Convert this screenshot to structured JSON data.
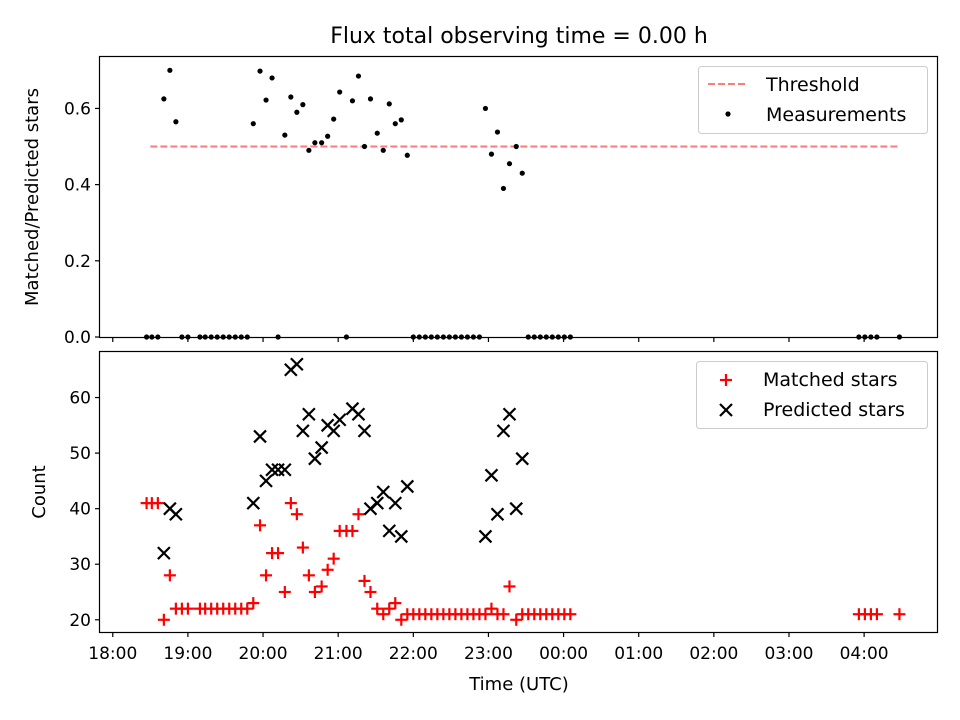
{
  "chart_data": [
    {
      "type": "scatter",
      "title": "Flux total observing time = 0.00 h",
      "ylabel": "Matched/Predicted stars",
      "xlabel": "",
      "ylim": [
        0,
        0.735
      ],
      "xlim_hours": [
        17.83,
        28.97
      ],
      "yticks": [
        0.0,
        0.2,
        0.4,
        0.6
      ],
      "ytick_labels": [
        "0.0",
        "0.2",
        "0.4",
        "0.6"
      ],
      "legend": {
        "position": "top-right",
        "threshold_label": "Threshold",
        "measurements_label": "Measurements"
      },
      "threshold": {
        "value": 0.5,
        "x_range": [
          18.5,
          28.47
        ],
        "color": "#ff7a7a"
      },
      "series": [
        {
          "name": "Measurements",
          "color": "#000000",
          "x": [
            18.45,
            18.52,
            18.6,
            18.68,
            18.76,
            18.84,
            18.92,
            19.0,
            19.16,
            19.23,
            19.31,
            19.39,
            19.47,
            19.55,
            19.63,
            19.71,
            19.79,
            19.87,
            19.96,
            20.04,
            20.12,
            20.2,
            20.29,
            20.37,
            20.45,
            20.53,
            20.61,
            20.69,
            20.78,
            20.86,
            20.94,
            21.02,
            21.11,
            21.19,
            21.27,
            21.35,
            21.43,
            21.52,
            21.6,
            21.68,
            21.76,
            21.84,
            21.92,
            22.0,
            22.08,
            22.16,
            22.24,
            22.32,
            22.4,
            22.48,
            22.56,
            22.64,
            22.72,
            22.8,
            22.88,
            22.96,
            23.04,
            23.12,
            23.2,
            23.28,
            23.37,
            23.45,
            23.53,
            23.61,
            23.69,
            23.77,
            23.85,
            23.93,
            24.01,
            24.09,
            27.93,
            28.01,
            28.09,
            28.17,
            28.47
          ],
          "y": [
            0.0,
            0.0,
            0.0,
            0.625,
            0.7,
            0.565,
            0.0,
            0.0,
            0.0,
            0.0,
            0.0,
            0.0,
            0.0,
            0.0,
            0.0,
            0.0,
            0.0,
            0.56,
            0.698,
            0.622,
            0.68,
            0.0,
            0.53,
            0.63,
            0.59,
            0.61,
            0.49,
            0.51,
            0.51,
            0.527,
            0.572,
            0.643,
            0.0,
            0.62,
            0.685,
            0.5,
            0.625,
            0.535,
            0.49,
            0.612,
            0.56,
            0.57,
            0.477,
            0.0,
            0.0,
            0.0,
            0.0,
            0.0,
            0.0,
            0.0,
            0.0,
            0.0,
            0.0,
            0.0,
            0.0,
            0.6,
            0.48,
            0.538,
            0.39,
            0.455,
            0.5,
            0.43,
            0.0,
            0.0,
            0.0,
            0.0,
            0.0,
            0.0,
            0.0,
            0.0,
            0.0,
            0.0,
            0.0,
            0.0,
            0.0
          ]
        }
      ]
    },
    {
      "type": "scatter",
      "title": "",
      "ylabel": "Count",
      "xlabel": "Time (UTC)",
      "ylim": [
        17.8,
        68.2
      ],
      "xlim_hours": [
        17.83,
        28.97
      ],
      "yticks": [
        20,
        30,
        40,
        50,
        60
      ],
      "ytick_labels": [
        "20",
        "30",
        "40",
        "50",
        "60"
      ],
      "xticks_hours": [
        18,
        19,
        20,
        21,
        22,
        23,
        24,
        25,
        26,
        27,
        28
      ],
      "xtick_labels": [
        "18:00",
        "19:00",
        "20:00",
        "21:00",
        "22:00",
        "23:00",
        "00:00",
        "01:00",
        "02:00",
        "03:00",
        "04:00"
      ],
      "legend": {
        "position": "top-right",
        "matched_label": "Matched stars",
        "predicted_label": "Predicted stars"
      },
      "series": [
        {
          "name": "Matched stars",
          "marker": "+",
          "color": "#ff0000",
          "x": [
            18.45,
            18.52,
            18.6,
            18.68,
            18.76,
            18.84,
            18.92,
            19.0,
            19.16,
            19.23,
            19.31,
            19.39,
            19.47,
            19.55,
            19.63,
            19.71,
            19.79,
            19.87,
            19.96,
            20.04,
            20.12,
            20.2,
            20.29,
            20.37,
            20.45,
            20.53,
            20.61,
            20.69,
            20.78,
            20.86,
            20.94,
            21.02,
            21.11,
            21.19,
            21.27,
            21.35,
            21.43,
            21.52,
            21.6,
            21.68,
            21.76,
            21.84,
            21.92,
            22.0,
            22.08,
            22.16,
            22.24,
            22.32,
            22.4,
            22.48,
            22.56,
            22.64,
            22.72,
            22.8,
            22.88,
            22.96,
            23.04,
            23.12,
            23.2,
            23.28,
            23.37,
            23.45,
            23.53,
            23.61,
            23.69,
            23.77,
            23.85,
            23.93,
            24.01,
            24.09,
            27.93,
            28.01,
            28.09,
            28.17,
            28.47
          ],
          "y": [
            41,
            41,
            41,
            20,
            28,
            22,
            22,
            22,
            22,
            22,
            22,
            22,
            22,
            22,
            22,
            22,
            22,
            23,
            37,
            28,
            32,
            32,
            25,
            41,
            39,
            33,
            28,
            25,
            26,
            29,
            31,
            36,
            36,
            36,
            39,
            27,
            25,
            22,
            21,
            22,
            23,
            20,
            21,
            21,
            21,
            21,
            21,
            21,
            21,
            21,
            21,
            21,
            21,
            21,
            21,
            21,
            22,
            21,
            21,
            26,
            20,
            21,
            21,
            21,
            21,
            21,
            21,
            21,
            21,
            21,
            21,
            21,
            21,
            21,
            21
          ]
        },
        {
          "name": "Predicted stars",
          "marker": "x",
          "color": "#000000",
          "x": [
            18.68,
            18.76,
            18.84,
            19.87,
            19.96,
            20.04,
            20.12,
            20.2,
            20.29,
            20.37,
            20.45,
            20.53,
            20.61,
            20.69,
            20.78,
            20.86,
            20.94,
            21.02,
            21.19,
            21.27,
            21.35,
            21.43,
            21.52,
            21.6,
            21.68,
            21.76,
            21.84,
            21.92,
            22.96,
            23.04,
            23.12,
            23.2,
            23.28,
            23.37,
            23.45
          ],
          "y": [
            32,
            40,
            39,
            41,
            53,
            45,
            47,
            47,
            47,
            65,
            66,
            54,
            57,
            49,
            51,
            55,
            54,
            56,
            58,
            57,
            54,
            40,
            41,
            43,
            36,
            41,
            35,
            44,
            35,
            46,
            39,
            54,
            57,
            40,
            49
          ]
        }
      ]
    }
  ]
}
